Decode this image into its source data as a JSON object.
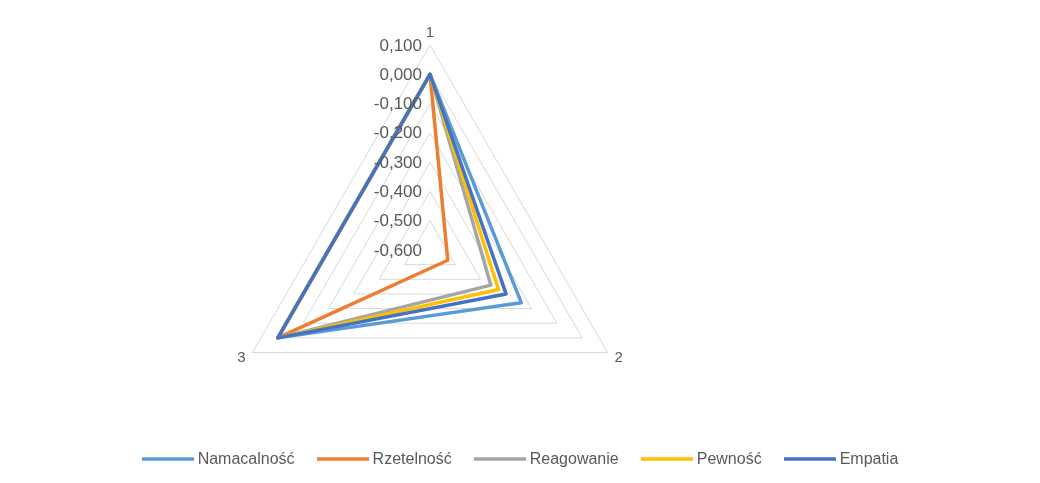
{
  "chart_data": {
    "type": "radar",
    "categories": [
      "1",
      "2",
      "3"
    ],
    "series": [
      {
        "name": "Namacalność",
        "color": "#5b9bd5",
        "values": [
          0.0,
          -0.24,
          0.0
        ]
      },
      {
        "name": "Rzetelność",
        "color": "#ed7d31",
        "values": [
          0.0,
          -0.53,
          0.0
        ]
      },
      {
        "name": "Reagowanie",
        "color": "#a5a5a5",
        "values": [
          0.0,
          -0.36,
          0.0
        ]
      },
      {
        "name": "Pewność",
        "color": "#ffc000",
        "values": [
          0.0,
          -0.33,
          0.0
        ]
      },
      {
        "name": "Empatia",
        "color": "#4472c4",
        "values": [
          0.0,
          -0.3,
          0.0
        ]
      }
    ],
    "ylim": [
      -0.6,
      0.1
    ],
    "yticks": [
      {
        "value": 0.1,
        "label": "0,100"
      },
      {
        "value": 0,
        "label": "0,000"
      },
      {
        "value": -0.1,
        "label": "-0,100"
      },
      {
        "value": -0.2,
        "label": "-0,200"
      },
      {
        "value": -0.3,
        "label": "-0,300"
      },
      {
        "value": -0.4,
        "label": "-0,400"
      },
      {
        "value": -0.5,
        "label": "-0,500"
      },
      {
        "value": -0.6,
        "label": "-0,600"
      }
    ],
    "grid": true,
    "legend": "bottom",
    "marker": "none",
    "line_style": "solid"
  }
}
